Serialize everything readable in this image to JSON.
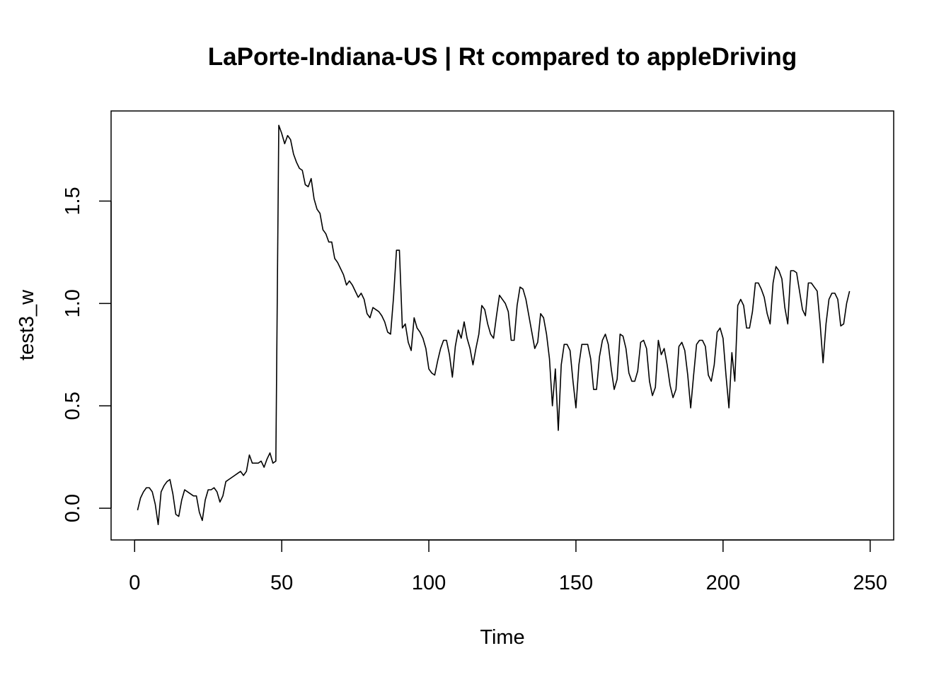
{
  "chart_data": {
    "type": "line",
    "title": "LaPorte-Indiana-US | Rt compared to appleDriving",
    "xlabel": "Time",
    "ylabel": "test3_w",
    "xlim": [
      -8,
      258
    ],
    "ylim": [
      -0.155,
      1.94
    ],
    "x_ticks": [
      0,
      50,
      100,
      150,
      200,
      250
    ],
    "y_ticks": [
      0.0,
      0.5,
      1.0,
      1.5
    ],
    "x_tick_labels": [
      "0",
      "50",
      "100",
      "150",
      "200",
      "250"
    ],
    "y_tick_labels": [
      "0.0",
      "0.5",
      "1.0",
      "1.5"
    ],
    "grid": false,
    "line_color": "#000000",
    "x_start": 1,
    "series": [
      {
        "values": [
          -0.01,
          0.05,
          0.08,
          0.1,
          0.1,
          0.08,
          0.02,
          -0.08,
          0.08,
          0.11,
          0.13,
          0.14,
          0.07,
          -0.03,
          -0.04,
          0.04,
          0.09,
          0.08,
          0.07,
          0.06,
          0.06,
          -0.02,
          -0.06,
          0.04,
          0.09,
          0.09,
          0.1,
          0.08,
          0.03,
          0.06,
          0.13,
          0.14,
          0.15,
          0.16,
          0.17,
          0.18,
          0.16,
          0.18,
          0.26,
          0.22,
          0.22,
          0.22,
          0.23,
          0.2,
          0.24,
          0.27,
          0.22,
          0.23,
          1.87,
          1.83,
          1.78,
          1.82,
          1.8,
          1.73,
          1.69,
          1.66,
          1.65,
          1.58,
          1.57,
          1.61,
          1.51,
          1.46,
          1.44,
          1.36,
          1.34,
          1.3,
          1.3,
          1.22,
          1.2,
          1.17,
          1.14,
          1.09,
          1.11,
          1.09,
          1.06,
          1.03,
          1.05,
          1.02,
          0.95,
          0.93,
          0.98,
          0.97,
          0.96,
          0.94,
          0.91,
          0.86,
          0.85,
          1.03,
          1.26,
          1.26,
          0.88,
          0.9,
          0.81,
          0.77,
          0.93,
          0.88,
          0.86,
          0.83,
          0.78,
          0.68,
          0.66,
          0.65,
          0.72,
          0.78,
          0.82,
          0.82,
          0.75,
          0.64,
          0.79,
          0.87,
          0.83,
          0.91,
          0.83,
          0.78,
          0.7,
          0.78,
          0.85,
          0.99,
          0.97,
          0.9,
          0.85,
          0.83,
          0.94,
          1.04,
          1.02,
          1.0,
          0.96,
          0.82,
          0.82,
          0.99,
          1.08,
          1.07,
          1.02,
          0.94,
          0.86,
          0.78,
          0.81,
          0.95,
          0.93,
          0.85,
          0.73,
          0.5,
          0.68,
          0.38,
          0.7,
          0.8,
          0.8,
          0.77,
          0.62,
          0.49,
          0.7,
          0.8,
          0.8,
          0.8,
          0.73,
          0.58,
          0.58,
          0.74,
          0.82,
          0.85,
          0.8,
          0.68,
          0.58,
          0.63,
          0.85,
          0.84,
          0.78,
          0.66,
          0.62,
          0.62,
          0.67,
          0.81,
          0.82,
          0.78,
          0.62,
          0.55,
          0.59,
          0.82,
          0.75,
          0.78,
          0.7,
          0.6,
          0.54,
          0.58,
          0.79,
          0.81,
          0.77,
          0.65,
          0.49,
          0.65,
          0.8,
          0.82,
          0.82,
          0.79,
          0.65,
          0.62,
          0.7,
          0.86,
          0.88,
          0.83,
          0.65,
          0.49,
          0.76,
          0.62,
          0.99,
          1.02,
          0.99,
          0.88,
          0.88,
          0.96,
          1.1,
          1.1,
          1.07,
          1.03,
          0.95,
          0.9,
          1.1,
          1.18,
          1.16,
          1.12,
          0.98,
          0.9,
          1.16,
          1.16,
          1.15,
          1.06,
          0.97,
          0.94,
          1.1,
          1.1,
          1.08,
          1.06,
          0.9,
          0.71,
          0.9,
          1.02,
          1.05,
          1.05,
          1.02,
          0.89,
          0.9,
          1.0,
          1.06
        ]
      }
    ]
  }
}
